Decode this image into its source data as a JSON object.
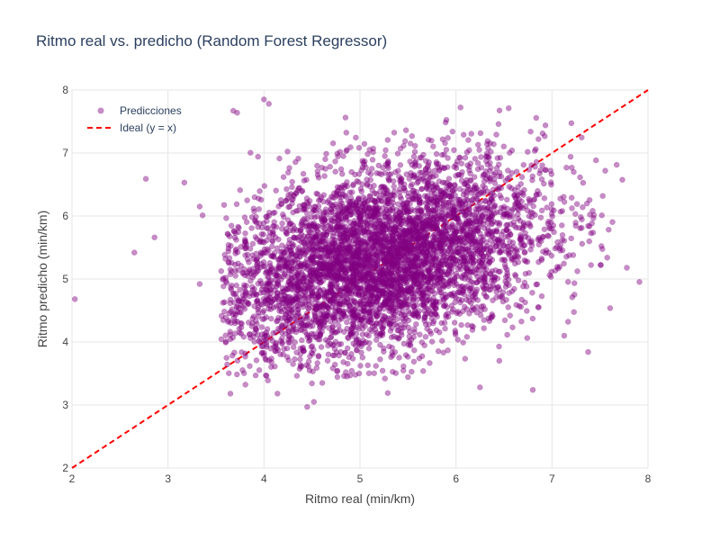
{
  "chart_data": {
    "type": "scatter",
    "title": "Ritmo real vs. predicho (Random Forest Regressor)",
    "xlabel": "Ritmo real (min/km)",
    "ylabel": "Ritmo predicho (min/km)",
    "xlim": [
      2,
      8
    ],
    "ylim": [
      2,
      8
    ],
    "xticks": [
      "2",
      "3",
      "4",
      "5",
      "6",
      "7",
      "8"
    ],
    "yticks": [
      "2",
      "3",
      "4",
      "5",
      "6",
      "7",
      "8"
    ],
    "grid": true,
    "legend_position": "top-left",
    "series": [
      {
        "name": "Predicciones",
        "kind": "markers",
        "color": "#800080",
        "opacity": 0.45,
        "approx_points": 5000,
        "cluster_center": [
          5.2,
          5.3
        ],
        "outliers": [
          [
            2.03,
            4.68
          ],
          [
            2.65,
            5.42
          ],
          [
            2.77,
            6.59
          ],
          [
            2.86,
            5.66
          ],
          [
            3.17,
            6.53
          ],
          [
            3.33,
            6.15
          ],
          [
            3.36,
            6.01
          ],
          [
            3.33,
            4.92
          ],
          [
            3.65,
            3.18
          ],
          [
            3.68,
            7.67
          ],
          [
            4.14,
            3.18
          ],
          [
            4.45,
            2.97
          ],
          [
            4.52,
            3.05
          ],
          [
            5.29,
            3.19
          ],
          [
            6.25,
            3.28
          ],
          [
            6.8,
            3.24
          ],
          [
            3.72,
            7.64
          ],
          [
            4.0,
            7.85
          ],
          [
            4.05,
            7.78
          ]
        ]
      },
      {
        "name": "Ideal (y = x)",
        "kind": "line",
        "dash": "dash",
        "color": "#ff0000",
        "x": [
          2,
          8
        ],
        "y": [
          2,
          8
        ]
      }
    ]
  }
}
